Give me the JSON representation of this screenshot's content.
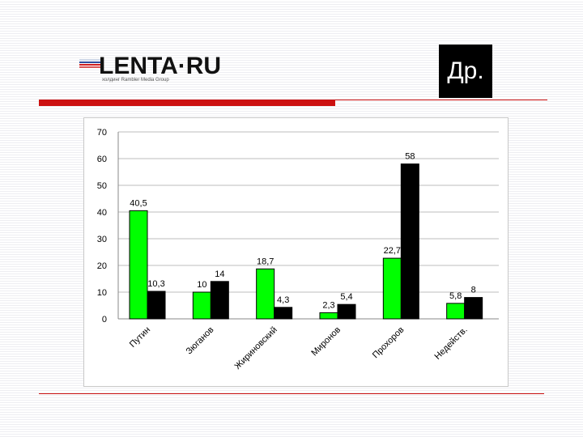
{
  "logo": {
    "text": "LENTA·RU",
    "subtitle": "холдинг Rambler Media Group"
  },
  "badge": {
    "text": "Др."
  },
  "colors": {
    "green": "#00ff00",
    "black": "#000000",
    "accent": "#cc1111"
  },
  "chart_data": {
    "type": "bar",
    "categories": [
      "Путин",
      "Зюганов",
      "Жириновский",
      "Миронов",
      "Прохоров",
      "Недейств."
    ],
    "series": [
      {
        "values": [
          40.5,
          10,
          18.7,
          2.3,
          22.7,
          5.8
        ],
        "color": "#00ff00",
        "labels": [
          "40,5",
          "10",
          "18,7",
          "2,3",
          "22,7",
          "5,8"
        ]
      },
      {
        "values": [
          10.3,
          14,
          4.3,
          5.4,
          58,
          8
        ],
        "color": "#000000",
        "labels": [
          "10,3",
          "14",
          "4,3",
          "5,4",
          "58",
          "8"
        ]
      }
    ],
    "yticks": [
      "0",
      "10",
      "20",
      "30",
      "40",
      "50",
      "60",
      "70"
    ],
    "ylim": [
      0,
      70
    ],
    "grid": true,
    "legend": "none"
  }
}
